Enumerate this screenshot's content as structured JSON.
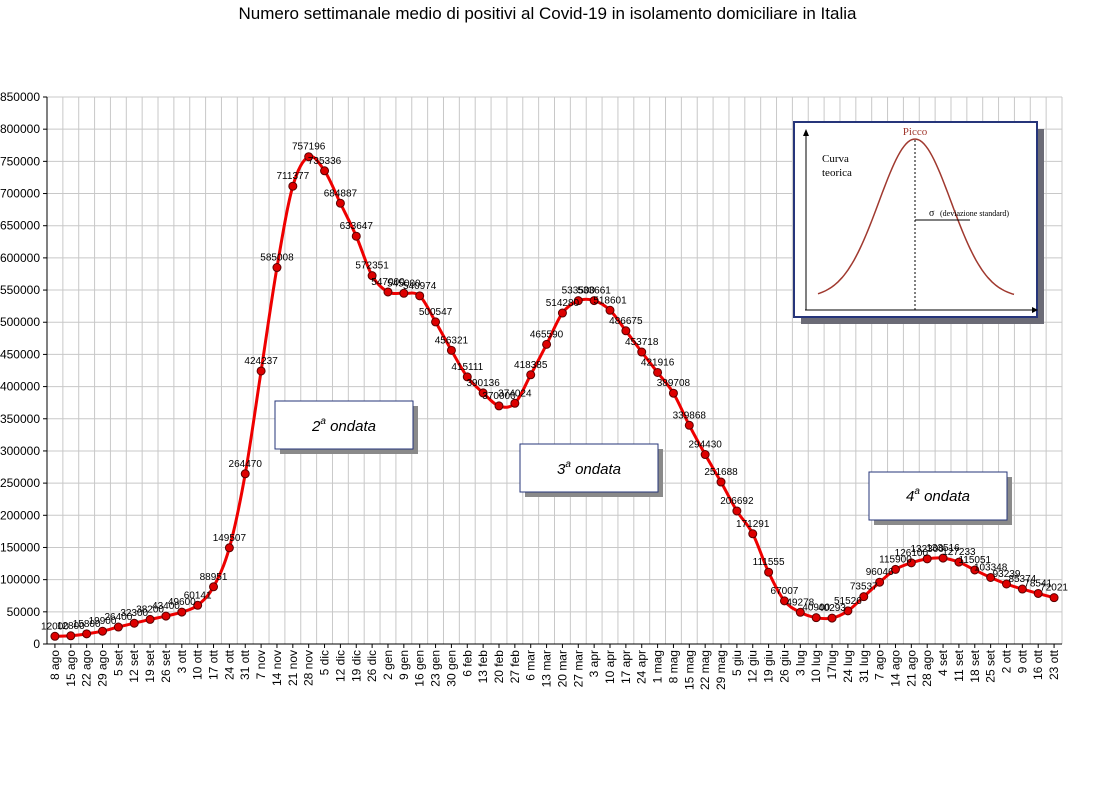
{
  "chart_data": {
    "type": "line",
    "title": "Numero settimanale medio di positivi al Covid-19  in isolamento domiciliare in Italia",
    "ylim": [
      0,
      850000
    ],
    "yticks": [
      0,
      50000,
      100000,
      150000,
      200000,
      250000,
      300000,
      350000,
      400000,
      450000,
      500000,
      550000,
      600000,
      650000,
      700000,
      750000,
      800000,
      850000
    ],
    "grid": true,
    "series_color": "#ee0000",
    "marker_color": "#dd0000",
    "categories": [
      "8 ago",
      "15 ago",
      "22 ago",
      "29 ago",
      "5 set",
      "12 set",
      "19 set",
      "26 set",
      "3 ott",
      "10 ott",
      "17 ott",
      "24 ott",
      "31 ott",
      "7 nov",
      "14 nov",
      "21 nov",
      "28 nov",
      "5 dic",
      "12 dic",
      "19 dic",
      "26 dic",
      "2 gen",
      "9 gen",
      "16 gen",
      "23 gen",
      "30 gen",
      "6 feb",
      "13 feb",
      "20 feb",
      "27 feb",
      "6 mar",
      "13 mar",
      "20 mar",
      "27 mar",
      "3 apr",
      "10 apr",
      "17 apr",
      "24 apr",
      "1 mag",
      "8 mag",
      "15 mag",
      "22 mag",
      "29 mag",
      "5 giu",
      "12 giu",
      "19 giu",
      "26 giu",
      "3 lug",
      "10 lug",
      "17lug",
      "24 lug",
      "31 lug",
      "7 ago",
      "14 ago",
      "21 ago",
      "28 ago",
      "4 set",
      "11 set",
      "18 set",
      "25 set",
      "2 ott",
      "9 ott",
      "16 ott",
      "23 ott"
    ],
    "values": [
      12000,
      12800,
      15800,
      19900,
      26400,
      32300,
      38200,
      43400,
      49600,
      60141,
      88951,
      149507,
      264470,
      424237,
      585008,
      711377,
      757196,
      735336,
      684887,
      633647,
      572351,
      547000,
      545000,
      540974,
      500547,
      456321,
      415111,
      390136,
      370000,
      374024,
      418385,
      465590,
      514280,
      533500,
      533661,
      518601,
      486675,
      453718,
      421916,
      389708,
      339868,
      294430,
      251688,
      206692,
      171291,
      111555,
      67007,
      49278,
      40900,
      40293,
      51526,
      73537,
      96046,
      115900,
      126100,
      132300,
      133516,
      127233,
      115051,
      103348,
      93239,
      85374,
      78541,
      72021
    ],
    "labels": [
      "12000",
      "12800",
      "15800",
      "19900",
      "26400",
      "32300",
      "38200",
      "43400",
      "49600",
      "60141",
      "88951",
      "149507",
      "264470",
      "424237",
      "585008",
      "711377",
      "757196",
      "735336",
      "684887",
      "633647",
      "572351",
      "547000",
      "545000",
      "540974",
      "500547",
      "456321",
      "415111",
      "390136",
      "370000",
      "374024",
      "418385",
      "465590",
      "514280",
      "533500",
      "533661",
      "518601",
      "486675",
      "453718",
      "421916",
      "389708",
      "339868",
      "294430",
      "251688",
      "206692",
      "171291",
      "111555",
      "67007",
      "49278",
      "40900",
      "40293",
      "51526",
      "73537",
      "96046",
      "115900",
      "126100",
      "132300",
      "133516",
      "127233",
      "115051",
      "103348",
      "93239",
      "85374",
      "78541",
      "72021"
    ],
    "annotations": [
      {
        "base": "2",
        "sup": "a",
        "text": " ondata"
      },
      {
        "base": "3",
        "sup": "a",
        "text": " ondata"
      },
      {
        "base": "4",
        "sup": "a",
        "text": " ondata"
      }
    ]
  },
  "inset": {
    "peak_label": "Picco",
    "curve_label_1": "Curva",
    "curve_label_2": "teorica",
    "sigma_symbol": "σ",
    "sigma_label": "(deviazione standard)"
  }
}
